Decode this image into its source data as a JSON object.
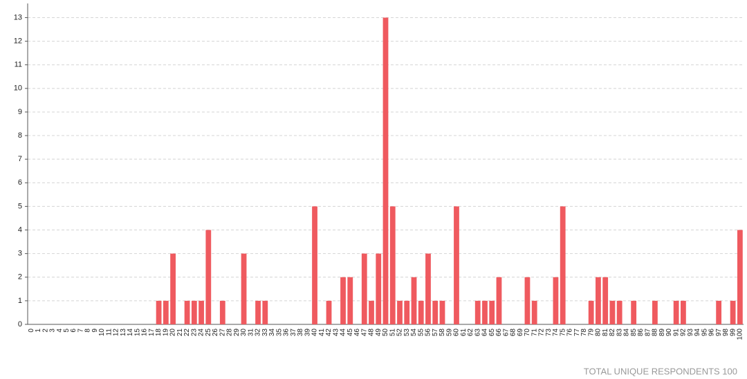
{
  "chart_data": {
    "type": "bar",
    "categories": [
      "0",
      "1",
      "2",
      "3",
      "4",
      "5",
      "6",
      "7",
      "8",
      "9",
      "10",
      "11",
      "12",
      "13",
      "14",
      "15",
      "16",
      "17",
      "18",
      "19",
      "20",
      "21",
      "22",
      "23",
      "24",
      "25",
      "26",
      "27",
      "28",
      "29",
      "30",
      "31",
      "32",
      "33",
      "34",
      "35",
      "36",
      "37",
      "38",
      "39",
      "40",
      "41",
      "42",
      "43",
      "44",
      "45",
      "46",
      "47",
      "48",
      "49",
      "50",
      "51",
      "52",
      "53",
      "54",
      "55",
      "56",
      "57",
      "58",
      "59",
      "60",
      "61",
      "62",
      "63",
      "64",
      "65",
      "66",
      "67",
      "68",
      "69",
      "70",
      "71",
      "72",
      "73",
      "74",
      "75",
      "76",
      "77",
      "78",
      "79",
      "80",
      "81",
      "82",
      "83",
      "84",
      "85",
      "86",
      "87",
      "88",
      "89",
      "90",
      "91",
      "92",
      "93",
      "94",
      "95",
      "96",
      "97",
      "98",
      "99",
      "100"
    ],
    "values": [
      0,
      0,
      0,
      0,
      0,
      0,
      0,
      0,
      0,
      0,
      0,
      0,
      0,
      0,
      0,
      0,
      0,
      0,
      1,
      1,
      3,
      0,
      1,
      1,
      1,
      4,
      0,
      1,
      0,
      0,
      3,
      0,
      1,
      1,
      0,
      0,
      0,
      0,
      0,
      0,
      5,
      0,
      1,
      0,
      2,
      2,
      0,
      3,
      1,
      3,
      13,
      5,
      1,
      1,
      2,
      1,
      3,
      1,
      1,
      0,
      5,
      0,
      0,
      1,
      1,
      1,
      2,
      0,
      0,
      0,
      2,
      1,
      0,
      0,
      2,
      5,
      0,
      0,
      0,
      1,
      2,
      2,
      1,
      1,
      0,
      1,
      0,
      0,
      1,
      0,
      0,
      1,
      1,
      0,
      0,
      0,
      0,
      1,
      0,
      1,
      4
    ],
    "color": "#ef5a5f",
    "ylim": [
      0,
      13.6
    ],
    "yticks": [
      0,
      1,
      2,
      3,
      4,
      5,
      6,
      7,
      8,
      9,
      10,
      11,
      12,
      13
    ],
    "grid": true,
    "footnote": "TOTAL UNIQUE RESPONDENTS 100"
  }
}
